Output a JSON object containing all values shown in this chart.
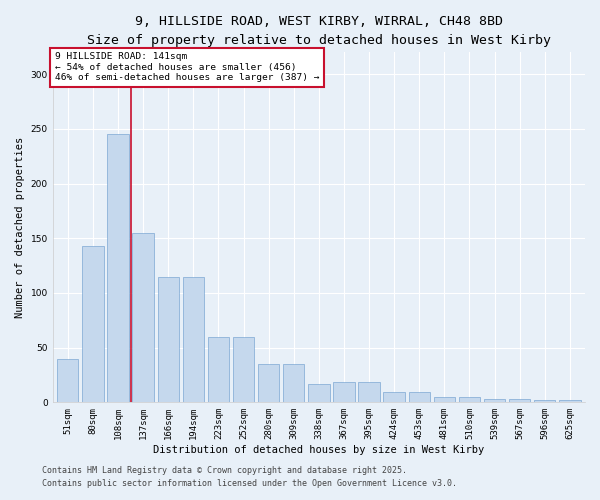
{
  "title_line1": "9, HILLSIDE ROAD, WEST KIRBY, WIRRAL, CH48 8BD",
  "title_line2": "Size of property relative to detached houses in West Kirby",
  "xlabel": "Distribution of detached houses by size in West Kirby",
  "ylabel": "Number of detached properties",
  "categories": [
    "51sqm",
    "80sqm",
    "108sqm",
    "137sqm",
    "166sqm",
    "194sqm",
    "223sqm",
    "252sqm",
    "280sqm",
    "309sqm",
    "338sqm",
    "367sqm",
    "395sqm",
    "424sqm",
    "453sqm",
    "481sqm",
    "510sqm",
    "539sqm",
    "567sqm",
    "596sqm",
    "625sqm"
  ],
  "values": [
    40,
    143,
    245,
    155,
    115,
    115,
    60,
    60,
    35,
    35,
    17,
    19,
    19,
    9,
    9,
    5,
    5,
    3,
    3,
    2,
    2
  ],
  "bar_color_normal": "#c5d8ed",
  "vline_x": 3,
  "vline_color": "#c8102e",
  "annotation_text": "9 HILLSIDE ROAD: 141sqm\n← 54% of detached houses are smaller (456)\n46% of semi-detached houses are larger (387) →",
  "annotation_box_facecolor": "#ffffff",
  "annotation_box_edgecolor": "#c8102e",
  "ylim": [
    0,
    320
  ],
  "yticks": [
    0,
    50,
    100,
    150,
    200,
    250,
    300
  ],
  "footer_line1": "Contains HM Land Registry data © Crown copyright and database right 2025.",
  "footer_line2": "Contains public sector information licensed under the Open Government Licence v3.0.",
  "bg_color": "#e8f0f8",
  "grid_color": "#ffffff",
  "title_fontsize": 9.5,
  "subtitle_fontsize": 8.5,
  "axis_label_fontsize": 7.5,
  "tick_fontsize": 6.5,
  "annotation_fontsize": 6.8,
  "footer_fontsize": 6.0
}
